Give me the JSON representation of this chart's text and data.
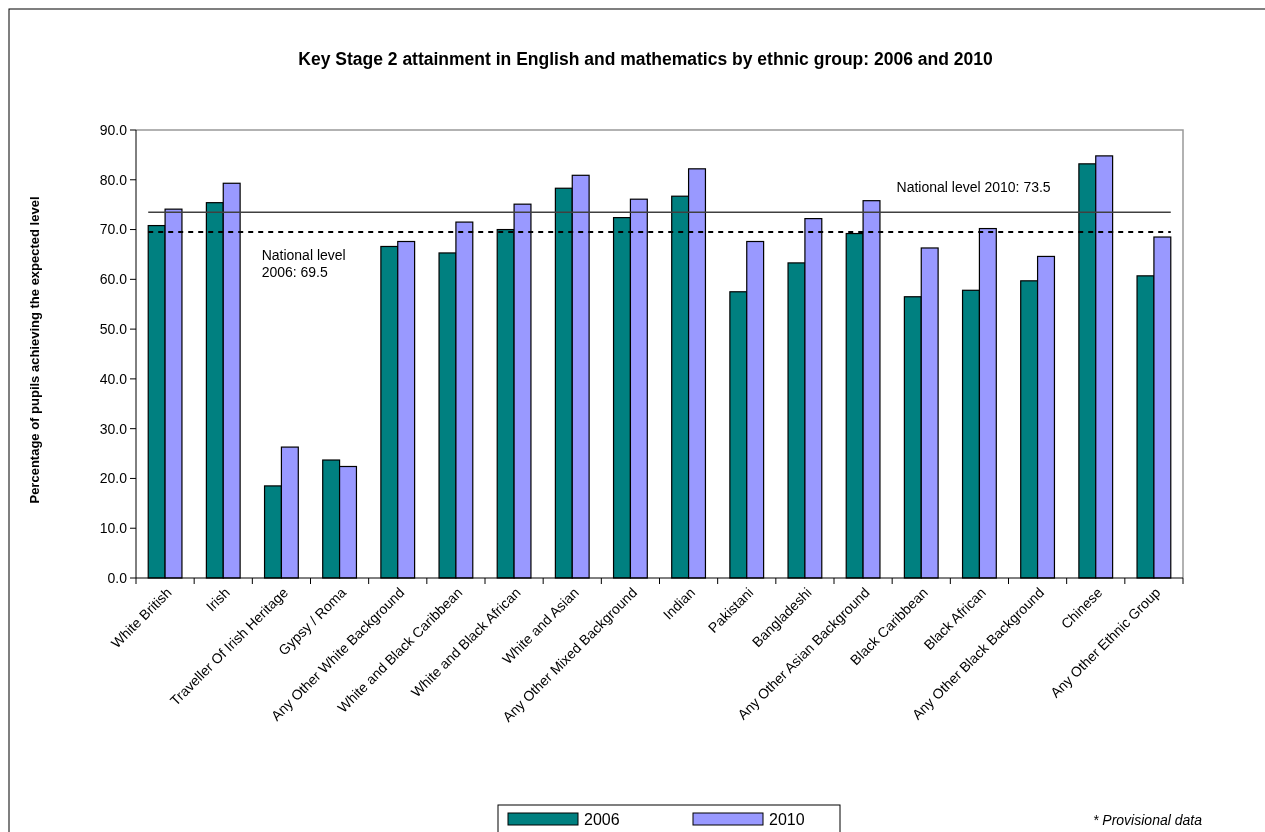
{
  "chart_data": {
    "type": "bar",
    "title": "Key Stage 2 attainment in English and mathematics by ethnic group: 2006 and 2010",
    "ylabel": "Percentage of pupils achieving the expected level",
    "categories": [
      "White British",
      "Irish",
      "Traveller Of Irish Heritage",
      "Gypsy / Roma",
      "Any Other White Background",
      "White and Black Caribbean",
      "White and Black African",
      "White and Asian",
      "Any Other Mixed Background",
      "Indian",
      "Pakistani",
      "Bangladeshi",
      "Any Other Asian Background",
      "Black Caribbean",
      "Black African",
      "Any Other Black Background",
      "Chinese",
      "Any Other Ethnic Group"
    ],
    "series": [
      {
        "name": "2006",
        "color": "#008080",
        "values": [
          70.8,
          75.4,
          18.5,
          23.7,
          66.6,
          65.3,
          70.0,
          78.3,
          72.4,
          76.7,
          57.5,
          63.3,
          69.2,
          56.5,
          57.8,
          59.7,
          83.2,
          60.7
        ]
      },
      {
        "name": "2010",
        "color": "#9999ff",
        "values": [
          74.1,
          79.3,
          26.3,
          22.4,
          67.6,
          71.5,
          75.1,
          80.9,
          76.1,
          82.2,
          67.6,
          72.2,
          75.8,
          66.3,
          70.2,
          64.6,
          84.8,
          68.5
        ]
      }
    ],
    "ylim": [
      0,
      90
    ],
    "yticks": [
      {
        "value": 0,
        "label": "0.0"
      },
      {
        "value": 10,
        "label": "10.0"
      },
      {
        "value": 20,
        "label": "20.0"
      },
      {
        "value": 30,
        "label": "30.0"
      },
      {
        "value": 40,
        "label": "40.0"
      },
      {
        "value": 50,
        "label": "50.0"
      },
      {
        "value": 60,
        "label": "60.0"
      },
      {
        "value": 70,
        "label": "70.0"
      },
      {
        "value": 80,
        "label": "80.0"
      },
      {
        "value": 90,
        "label": "90.0"
      }
    ],
    "ref_lines": [
      {
        "axis": "y",
        "value": 73.5,
        "label": "National level 2010: 73.5",
        "color": "#404040",
        "line_style": "solid"
      },
      {
        "axis": "y",
        "value": 69.5,
        "label": "National level 2006: 69.5",
        "color": "#000000",
        "line_style": "dashed"
      }
    ],
    "legend": "bottom",
    "grid": false,
    "annotations": [
      "* Provisional data"
    ]
  }
}
